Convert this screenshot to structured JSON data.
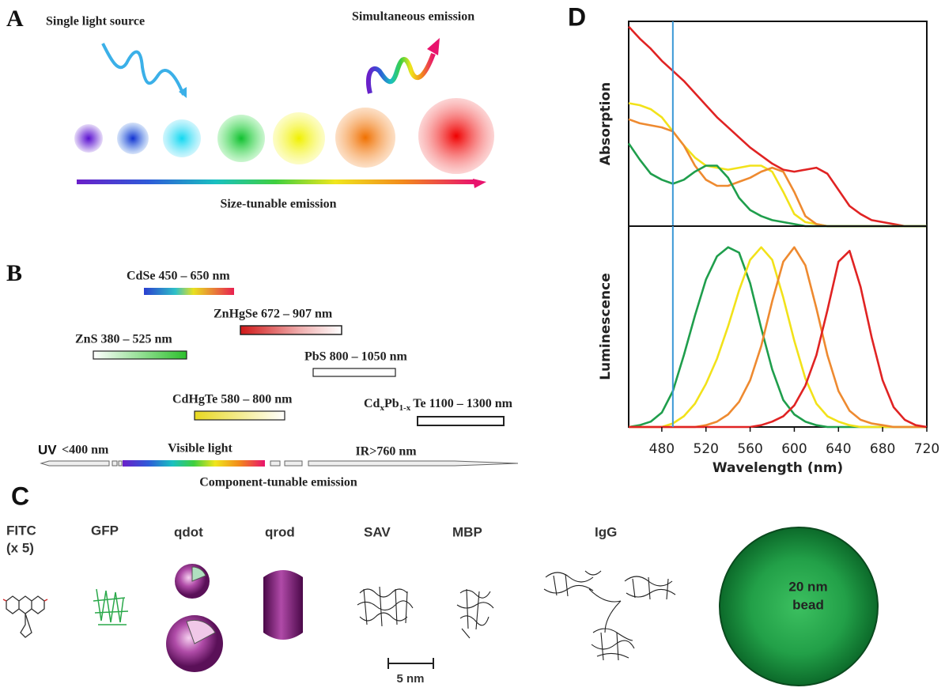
{
  "panels": {
    "a": {
      "label": "A",
      "single_light_source": "Single light source",
      "simultaneous_emission": "Simultaneous emission",
      "size_tunable": "Size-tunable emission"
    },
    "b": {
      "label": "B",
      "cdse": "CdSe 450 – 650 nm",
      "znhgse": "ZnHgSe 672 – 907 nm",
      "zns": "ZnS 380 – 525 nm",
      "pbs": "PbS 800 – 1050 nm",
      "cdhgte": "CdHgTe 580 – 800 nm",
      "cdpbte": [
        "Cd",
        "x",
        "Pb",
        "1-x",
        "Te 1100 – 1300 nm"
      ],
      "uv": "UV",
      "uv_range": "<400 nm",
      "visible": "Visible light",
      "ir": "IR>760 nm",
      "component_tunable": "Component-tunable emission"
    },
    "c": {
      "label": "C",
      "fitc": "FITC",
      "fitc_multiplier": "(x 5)",
      "gfp": "GFP",
      "qdot": "qdot",
      "qrod": "qrod",
      "sav": "SAV",
      "mbp": "MBP",
      "igg": "IgG",
      "bead_size": "20 nm",
      "bead": "bead",
      "scale": "5 nm"
    },
    "d": {
      "label": "D"
    }
  },
  "chart_data": [
    {
      "type": "line",
      "ylabel": "Absorption",
      "x": [
        450,
        460,
        470,
        480,
        490,
        500,
        510,
        520,
        530,
        540,
        550,
        560,
        570,
        580,
        590,
        600,
        610,
        620,
        630,
        640,
        650,
        660,
        670,
        680,
        690,
        700,
        710,
        720
      ],
      "xlim": [
        450,
        720
      ],
      "ylim": [
        0,
        1
      ],
      "vline": 490,
      "vline_color": "#3b98d6",
      "series": [
        {
          "color": "#e02323",
          "values": [
            0.99,
            0.93,
            0.88,
            0.82,
            0.77,
            0.72,
            0.66,
            0.6,
            0.54,
            0.49,
            0.44,
            0.39,
            0.35,
            0.31,
            0.28,
            0.27,
            0.28,
            0.29,
            0.26,
            0.18,
            0.1,
            0.06,
            0.03,
            0.02,
            0.01,
            0,
            0,
            0
          ]
        },
        {
          "color": "#f2e21a",
          "values": [
            0.61,
            0.6,
            0.58,
            0.54,
            0.47,
            0.4,
            0.34,
            0.3,
            0.29,
            0.28,
            0.29,
            0.3,
            0.3,
            0.27,
            0.17,
            0.06,
            0.02,
            0.01,
            0,
            0,
            0,
            0,
            0,
            0,
            0,
            0,
            0,
            0
          ]
        },
        {
          "color": "#ee8a30",
          "values": [
            0.53,
            0.51,
            0.5,
            0.49,
            0.47,
            0.4,
            0.3,
            0.23,
            0.2,
            0.2,
            0.22,
            0.24,
            0.27,
            0.29,
            0.27,
            0.17,
            0.05,
            0.01,
            0,
            0,
            0,
            0,
            0,
            0,
            0,
            0,
            0,
            0
          ]
        },
        {
          "color": "#1f9e4c",
          "values": [
            0.41,
            0.33,
            0.26,
            0.23,
            0.21,
            0.23,
            0.27,
            0.3,
            0.3,
            0.24,
            0.14,
            0.08,
            0.05,
            0.03,
            0.02,
            0.01,
            0,
            0,
            0,
            0,
            0,
            0,
            0,
            0,
            0,
            0,
            0,
            0
          ]
        }
      ]
    },
    {
      "type": "line",
      "ylabel": "Luminescence",
      "xlabel": "Wavelength (nm)",
      "x": [
        450,
        460,
        470,
        480,
        490,
        500,
        510,
        520,
        530,
        540,
        550,
        560,
        570,
        580,
        590,
        600,
        610,
        620,
        630,
        640,
        650,
        660,
        670,
        680,
        690,
        700,
        710,
        720
      ],
      "xlim": [
        450,
        720
      ],
      "ylim": [
        0,
        1.1
      ],
      "xticks": [
        480,
        520,
        560,
        600,
        640,
        680,
        720
      ],
      "vline": 490,
      "vline_color": "#3b98d6",
      "series": [
        {
          "color": "#1f9e4c",
          "values": [
            0,
            0.01,
            0.03,
            0.08,
            0.2,
            0.4,
            0.62,
            0.82,
            0.95,
            1.0,
            0.97,
            0.8,
            0.55,
            0.32,
            0.15,
            0.07,
            0.03,
            0.01,
            0,
            0,
            0,
            0,
            0,
            0,
            0,
            0,
            0,
            0
          ]
        },
        {
          "color": "#f2e21a",
          "values": [
            0,
            0,
            0,
            0,
            0.02,
            0.06,
            0.13,
            0.24,
            0.38,
            0.56,
            0.76,
            0.93,
            1.0,
            0.93,
            0.72,
            0.48,
            0.27,
            0.13,
            0.06,
            0.03,
            0.01,
            0,
            0,
            0,
            0,
            0,
            0,
            0
          ]
        },
        {
          "color": "#ee8a30",
          "values": [
            0,
            0,
            0,
            0,
            0,
            0,
            0,
            0.01,
            0.03,
            0.07,
            0.14,
            0.26,
            0.45,
            0.7,
            0.92,
            1.0,
            0.9,
            0.66,
            0.4,
            0.2,
            0.09,
            0.04,
            0.02,
            0.01,
            0,
            0,
            0,
            0
          ]
        },
        {
          "color": "#e02323",
          "values": [
            0,
            0,
            0,
            0,
            0,
            0,
            0,
            0,
            0,
            0,
            0,
            0,
            0.01,
            0.03,
            0.06,
            0.12,
            0.23,
            0.4,
            0.65,
            0.92,
            0.98,
            0.78,
            0.5,
            0.26,
            0.11,
            0.04,
            0.01,
            0
          ]
        }
      ]
    }
  ]
}
